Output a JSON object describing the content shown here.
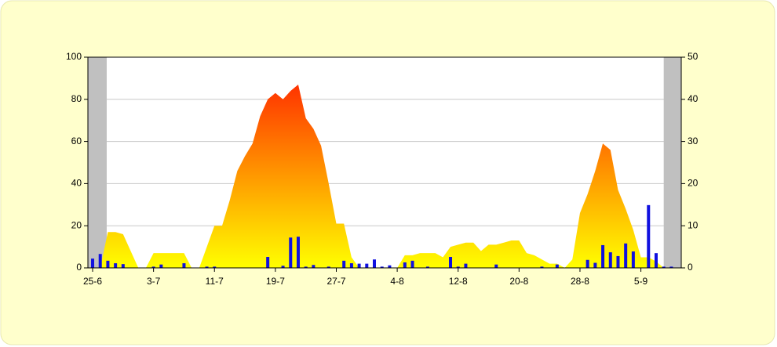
{
  "chart_data": {
    "type": "area_bar",
    "x": [
      0,
      1,
      2,
      3,
      4,
      5,
      6,
      7,
      8,
      9,
      10,
      11,
      12,
      13,
      14,
      15,
      16,
      17,
      18,
      19,
      20,
      21,
      22,
      23,
      24,
      25,
      26,
      27,
      28,
      29,
      30,
      31,
      32,
      33,
      34,
      35,
      36,
      37,
      38,
      39,
      40,
      41,
      42,
      43,
      44,
      45,
      46,
      47,
      48,
      49,
      50,
      51,
      52,
      53,
      54,
      55,
      56,
      57,
      58,
      59,
      60,
      61,
      62,
      63,
      64,
      65,
      66,
      67,
      68,
      69,
      70,
      71,
      72,
      73,
      74,
      75,
      76
    ],
    "series": [
      {
        "color": [
          "#ffff00",
          "#ff9900",
          "#ff3300"
        ],
        "values": [
          0,
          0,
          17,
          17,
          16,
          8,
          0,
          0,
          7,
          7,
          7,
          7,
          7,
          0,
          0,
          10,
          20,
          20,
          32,
          46,
          53,
          59,
          72,
          80,
          83,
          80,
          84,
          87,
          71,
          66,
          58,
          40,
          21,
          21,
          5,
          0,
          0,
          0,
          0,
          0,
          0,
          6,
          6,
          7,
          7,
          7,
          5,
          10,
          11,
          12,
          12,
          8,
          11,
          11,
          12,
          13,
          13,
          7,
          6,
          4,
          2,
          2,
          0,
          4,
          26,
          35,
          46,
          59,
          56,
          37,
          28,
          18,
          5,
          5,
          3,
          0,
          0
        ]
      },
      {
        "color": "#1010e0",
        "axis": "y2",
        "values": [
          2.2,
          3.3,
          1.7,
          1.1,
          0.9,
          0,
          0,
          0,
          0.3,
          0.8,
          0,
          0,
          1.1,
          0,
          0,
          0.3,
          0.3,
          0,
          0,
          0,
          0,
          0,
          0,
          2.6,
          0,
          0.5,
          7.2,
          7.4,
          0.3,
          0.7,
          0,
          0.3,
          0,
          1.7,
          1.1,
          1.0,
          1.0,
          2.0,
          0.3,
          0.6,
          0,
          1.3,
          1.7,
          0,
          0.3,
          0,
          0,
          2.6,
          0.3,
          1.0,
          0,
          0,
          0,
          0.8,
          0,
          0,
          0,
          0,
          0,
          0.3,
          0,
          0.8,
          0,
          0,
          0,
          1.9,
          1.2,
          5.4,
          3.7,
          2.8,
          5.8,
          3.9,
          0,
          14.9,
          3.5,
          0.3,
          0.3
        ]
      }
    ],
    "xlim": [
      -0.62,
      77.3
    ],
    "xticks": [
      {
        "value": 0,
        "label": "25-6"
      },
      {
        "value": 8,
        "label": "3-7"
      },
      {
        "value": 16,
        "label": "11-7"
      },
      {
        "value": 24,
        "label": "19-7"
      },
      {
        "value": 32,
        "label": "27-7"
      },
      {
        "value": 40,
        "label": "4-8"
      },
      {
        "value": 48,
        "label": "12-8"
      },
      {
        "value": 56,
        "label": "20-8"
      },
      {
        "value": 64,
        "label": "28-8"
      },
      {
        "value": 72,
        "label": "5-9"
      }
    ],
    "ylim": [
      0,
      100
    ],
    "yticks": [
      0,
      20,
      40,
      60,
      80,
      100
    ],
    "y2lim": [
      0,
      50
    ],
    "y2ticks": [
      0,
      10,
      20,
      30,
      40,
      50
    ],
    "shaded": [
      [
        -0.62,
        1.85
      ],
      [
        75.0,
        77.3
      ]
    ],
    "shade_color": "#c0c0c0",
    "grid": true
  }
}
